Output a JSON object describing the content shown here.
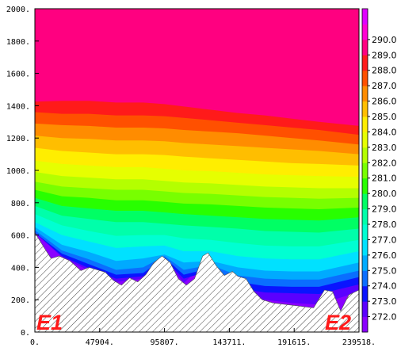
{
  "chart_data": {
    "type": "area",
    "title": "",
    "xlabel": "",
    "ylabel": "",
    "xlim": [
      0,
      239518
    ],
    "ylim": [
      0,
      2000
    ],
    "x_ticks": [
      0,
      47904,
      95807,
      143711,
      191615,
      239518
    ],
    "x_tick_labels": [
      "0.",
      "47904.",
      "95807.",
      "143711.",
      "191615.",
      "239518."
    ],
    "y_ticks": [
      0,
      200,
      400,
      600,
      800,
      1000,
      1200,
      1400,
      1600,
      1800,
      2000
    ],
    "y_tick_labels": [
      "0.",
      "200.",
      "400.",
      "600.",
      "800.",
      "1000.",
      "1200.",
      "1400.",
      "1600.",
      "1800.",
      "2000."
    ],
    "grid": false,
    "annotations": [
      {
        "text": "E1",
        "position": "bottom-left",
        "color": "#ff1a1a"
      },
      {
        "text": "E2",
        "position": "bottom-right",
        "color": "#ff1a1a"
      }
    ],
    "terrain": {
      "hatch_color": "#444444",
      "x": [
        0,
        7000,
        12000,
        18000,
        26000,
        34000,
        40000,
        46000,
        52000,
        58000,
        64000,
        70000,
        76000,
        82000,
        88000,
        94000,
        100000,
        106000,
        112000,
        118000,
        124000,
        128000,
        134000,
        140000,
        146000,
        150000,
        156000,
        162000,
        168000,
        176000,
        186000,
        196000,
        206000,
        214000,
        220000,
        226000,
        232000,
        239518
      ],
      "height": [
        615,
        520,
        455,
        470,
        440,
        380,
        400,
        385,
        370,
        320,
        290,
        335,
        310,
        355,
        430,
        470,
        430,
        330,
        290,
        330,
        470,
        490,
        410,
        350,
        375,
        345,
        330,
        250,
        200,
        180,
        170,
        160,
        150,
        260,
        250,
        130,
        230,
        260
      ]
    },
    "colorbar": {
      "levels": [
        272.0,
        273.0,
        274.0,
        275.0,
        276.0,
        277.0,
        278.0,
        279.0,
        280.0,
        281.0,
        282.0,
        283.0,
        284.0,
        285.0,
        286.0,
        287.0,
        288.0,
        289.0,
        290.0
      ],
      "labels": [
        "272.0",
        "273.0",
        "274.0",
        "275.0",
        "276.0",
        "277.0",
        "278.0",
        "279.0",
        "280.0",
        "281.0",
        "282.0",
        "283.0",
        "284.0",
        "285.0",
        "286.0",
        "287.0",
        "288.0",
        "289.0",
        "290.0"
      ],
      "colors": [
        "#8a00ff",
        "#5a00ff",
        "#0a14ff",
        "#0a6eff",
        "#00aaff",
        "#00e1ff",
        "#00ffd2",
        "#00ffaa",
        "#00ff64",
        "#28ff00",
        "#78ff00",
        "#b4ff00",
        "#e6ff00",
        "#ffee00",
        "#ffbe00",
        "#ff8c00",
        "#ff5000",
        "#ff1a1a",
        "#ff0080",
        "#ff00d2",
        "#e000ff"
      ]
    },
    "field": {
      "x": [
        0,
        20000,
        40000,
        60000,
        80000,
        95807,
        110000,
        130000,
        150000,
        170000,
        190000,
        210000,
        239518
      ],
      "isotherms": [
        {
          "level": 274.0,
          "values": [
            null,
            null,
            380,
            310,
            330,
            null,
            null,
            null,
            230,
            200,
            180,
            170,
            250
          ]
        },
        {
          "level": 275.0,
          "values": [
            null,
            470,
            395,
            330,
            345,
            450,
            330,
            380,
            270,
            245,
            240,
            235,
            295
          ]
        },
        {
          "level": 276.0,
          "values": [
            null,
            485,
            420,
            355,
            365,
            460,
            355,
            395,
            310,
            285,
            280,
            280,
            340
          ]
        },
        {
          "level": 277.0,
          "values": [
            630,
            505,
            450,
            385,
            400,
            470,
            385,
            415,
            350,
            330,
            325,
            325,
            380
          ]
        },
        {
          "level": 278.0,
          "values": [
            650,
            540,
            495,
            440,
            455,
            480,
            430,
            440,
            400,
            380,
            375,
            375,
            430
          ]
        },
        {
          "level": 279.0,
          "values": [
            680,
            600,
            560,
            520,
            530,
            535,
            500,
            500,
            470,
            455,
            450,
            450,
            500
          ]
        },
        {
          "level": 280.0,
          "values": [
            730,
            660,
            625,
            595,
            600,
            600,
            580,
            570,
            550,
            535,
            530,
            530,
            570
          ]
        },
        {
          "level": 281.0,
          "values": [
            780,
            720,
            700,
            680,
            680,
            670,
            660,
            650,
            640,
            625,
            620,
            615,
            640
          ]
        },
        {
          "level": 282.0,
          "values": [
            830,
            780,
            765,
            750,
            750,
            740,
            730,
            720,
            710,
            700,
            695,
            690,
            710
          ]
        },
        {
          "level": 283.0,
          "values": [
            880,
            840,
            830,
            815,
            815,
            805,
            795,
            790,
            780,
            770,
            765,
            760,
            770
          ]
        },
        {
          "level": 284.0,
          "values": [
            930,
            900,
            890,
            880,
            880,
            870,
            860,
            855,
            845,
            835,
            830,
            825,
            830
          ]
        },
        {
          "level": 285.0,
          "values": [
            990,
            965,
            955,
            945,
            945,
            935,
            925,
            920,
            910,
            900,
            895,
            890,
            890
          ]
        },
        {
          "level": 286.0,
          "values": [
            1060,
            1040,
            1030,
            1020,
            1020,
            1010,
            1000,
            995,
            985,
            975,
            970,
            965,
            960
          ]
        },
        {
          "level": 287.0,
          "values": [
            1140,
            1120,
            1110,
            1100,
            1100,
            1095,
            1085,
            1075,
            1065,
            1055,
            1045,
            1040,
            1030
          ]
        },
        {
          "level": 288.0,
          "values": [
            1215,
            1200,
            1195,
            1185,
            1185,
            1180,
            1170,
            1160,
            1150,
            1140,
            1130,
            1120,
            1100
          ]
        },
        {
          "level": 289.0,
          "values": [
            1290,
            1280,
            1275,
            1265,
            1265,
            1260,
            1250,
            1240,
            1230,
            1215,
            1200,
            1185,
            1160
          ]
        },
        {
          "level": 290.0,
          "values": [
            1360,
            1350,
            1350,
            1340,
            1340,
            1335,
            1325,
            1310,
            1295,
            1280,
            1265,
            1250,
            1220
          ]
        },
        {
          "level": 291.0,
          "values": [
            1425,
            1430,
            1430,
            1420,
            1420,
            1410,
            1395,
            1375,
            1355,
            1340,
            1320,
            1300,
            1275
          ]
        }
      ]
    }
  }
}
